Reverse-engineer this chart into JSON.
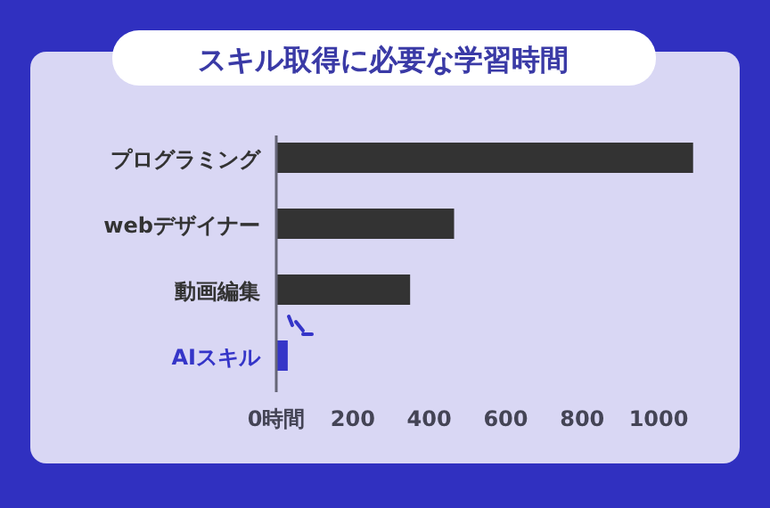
{
  "chart_data": {
    "type": "bar",
    "orientation": "horizontal",
    "title": "スキル取得に必要な学習時間",
    "categories": [
      "プログラミング",
      "webデザイナー",
      "動画編集",
      "AIスキル"
    ],
    "values": [
      1090,
      465,
      350,
      30
    ],
    "colors": [
      "#333333",
      "#333333",
      "#333333",
      "#3535c8"
    ],
    "xlim": [
      0,
      1100
    ],
    "xticks": [
      {
        "value": 0,
        "label": "0時間"
      },
      200,
      400,
      600,
      800,
      1000
    ],
    "grid": false
  }
}
